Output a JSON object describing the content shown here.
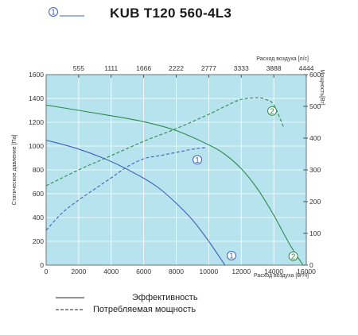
{
  "header": {
    "marker_label": "1",
    "model_title": "KUB T120 560-4L3"
  },
  "chart_data": {
    "type": "line",
    "title": "KUB T120 560-4L3",
    "xlabel": "Расход воздуха [м³/ч]",
    "x2label": "Расход воздуха [л/с]",
    "ylabel": "Статическое давление [Па]",
    "y2label": "Мощность[Вт]",
    "xlim": [
      0,
      16000
    ],
    "ylim": [
      0,
      1600
    ],
    "y2lim": [
      0,
      600
    ],
    "x_ticks": [
      "0",
      "2000",
      "4000",
      "6000",
      "8000",
      "10000",
      "12000",
      "14000",
      "16000"
    ],
    "x2_ticks": [
      "555",
      "1111",
      "1666",
      "2222",
      "2777",
      "3333",
      "3888",
      "4444"
    ],
    "y_ticks": [
      "0",
      "200",
      "400",
      "600",
      "800",
      "1000",
      "1200",
      "1400",
      "1600"
    ],
    "y2_ticks": [
      "0",
      "100",
      "200",
      "300",
      "400",
      "500",
      "600"
    ],
    "grid": true,
    "background": "#b7e3ef",
    "series": [
      {
        "name": "1",
        "kind": "Эффективность",
        "axis": "left",
        "color": "#3d62b8",
        "style": "solid",
        "x": [
          0,
          2000,
          4000,
          6000,
          7000,
          8000,
          9000,
          10000,
          11000
        ],
        "y": [
          1050,
          975,
          870,
          730,
          640,
          520,
          380,
          200,
          0
        ]
      },
      {
        "name": "2",
        "kind": "Эффективность",
        "axis": "left",
        "color": "#2e8b4a",
        "style": "solid",
        "x": [
          0,
          2000,
          4000,
          6000,
          8000,
          10000,
          11000,
          12000,
          13000,
          14000,
          15000,
          15800
        ],
        "y": [
          1345,
          1300,
          1255,
          1205,
          1130,
          1010,
          930,
          810,
          640,
          420,
          170,
          0
        ]
      },
      {
        "name": "1",
        "kind": "Потребляемая мощность",
        "axis": "right",
        "color": "#3d62b8",
        "style": "dashed",
        "x": [
          0,
          1000,
          2000,
          3000,
          4000,
          5000,
          6000,
          7000,
          8000,
          9000,
          9800
        ],
        "y": [
          110,
          165,
          205,
          240,
          275,
          310,
          335,
          345,
          355,
          365,
          370
        ]
      },
      {
        "name": "2",
        "kind": "Потребляемая мощность",
        "axis": "right",
        "color": "#2e8b4a",
        "style": "dashed",
        "x": [
          0,
          2000,
          4000,
          6000,
          8000,
          10000,
          11000,
          12000,
          13000,
          13500,
          14000,
          14600
        ],
        "y": [
          250,
          300,
          345,
          390,
          430,
          475,
          500,
          522,
          527,
          522,
          505,
          435
        ]
      }
    ],
    "curve_markers": [
      {
        "label": "1",
        "color": "#3d62b8",
        "x": 11400,
        "y": 80
      },
      {
        "label": "2",
        "color": "#2e8b4a",
        "x": 15200,
        "y": 75
      },
      {
        "label": "1",
        "color": "#3d62b8",
        "x": 9300,
        "y": 885
      },
      {
        "label": "2",
        "color": "#2e8b4a",
        "x": 13900,
        "y": 1295
      }
    ]
  },
  "legend": {
    "efficiency_label": "Эффективность",
    "power_label": "Потребляемая мощность"
  }
}
